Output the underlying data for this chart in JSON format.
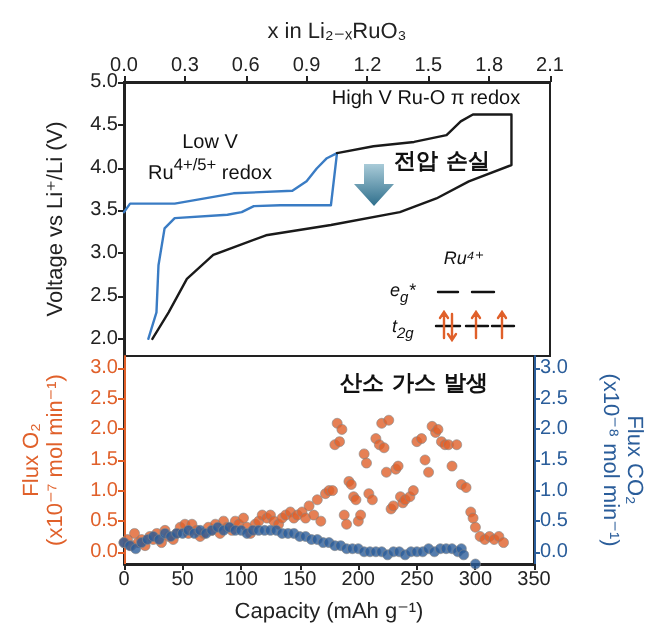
{
  "chart_data": [
    {
      "type": "line",
      "xlabel": "x in Li₂₋ₓRuO₃",
      "ylabel": "Voltage vs Li⁺/Li (V)",
      "xlim": [
        0,
        2.1
      ],
      "xticks": [
        {
          "value": 0,
          "label": "0.0"
        },
        {
          "value": 0.3,
          "label": "0.3"
        },
        {
          "value": 0.6,
          "label": "0.6"
        },
        {
          "value": 0.9,
          "label": "0.9"
        },
        {
          "value": 1.2,
          "label": "1.2"
        },
        {
          "value": 1.5,
          "label": "1.5"
        },
        {
          "value": 1.8,
          "label": "1.8"
        },
        {
          "value": 2.1,
          "label": "2.1"
        }
      ],
      "ylim": [
        1.8,
        5.0
      ],
      "yticks": [
        {
          "value": 2,
          "label": "2.0"
        },
        {
          "value": 2.5,
          "label": "2.5"
        },
        {
          "value": 3,
          "label": "3.0"
        },
        {
          "value": 3.5,
          "label": "3.5"
        },
        {
          "value": 4,
          "label": "4.0"
        },
        {
          "value": 4.5,
          "label": "4.5"
        },
        {
          "value": 5,
          "label": "5.0"
        }
      ],
      "marker": "none",
      "line_style": "solid",
      "grid": false,
      "series": [
        {
          "color": "#3a7cc4",
          "x": [
            0,
            0.03,
            0.25,
            0.54,
            0.83,
            0.9,
            0.95,
            1.0,
            1.05,
            1.02,
            0.77,
            0.64,
            0.58,
            0.51,
            0.25,
            0.2,
            0.17,
            0.16,
            0.12
          ],
          "values": [
            3.48,
            3.58,
            3.58,
            3.7,
            3.73,
            3.84,
            3.99,
            4.11,
            4.17,
            3.56,
            3.56,
            3.55,
            3.48,
            3.45,
            3.41,
            3.29,
            2.86,
            2.31,
            2.0
          ]
        },
        {
          "color": "#1a1a1a",
          "x": [
            1.05,
            1.23,
            1.43,
            1.59,
            1.66,
            1.72,
            1.91,
            1.91,
            1.7,
            1.54,
            1.36,
            1.02,
            0.7,
            0.44,
            0.31,
            0.22,
            0.14
          ],
          "values": [
            4.17,
            4.25,
            4.3,
            4.38,
            4.54,
            4.62,
            4.62,
            4.03,
            3.84,
            3.64,
            3.48,
            3.33,
            3.21,
            2.98,
            2.7,
            2.31,
            2.0
          ]
        }
      ],
      "annotations": [
        "High V Ru-O π redox",
        "Low V\nRu$^{4+/5+}$ redox",
        "전압 손실",
        "Ru⁴⁺",
        "e$_{g}$*",
        "t$_{2g}$"
      ]
    },
    {
      "type": "scatter",
      "xlabel": "Capacity (mAh g⁻¹)",
      "ylabel": "Flux O₂\n(x10⁻⁷ mol min⁻¹)",
      "y2label": "Flux CO₂\n(x10⁻⁸ mol min⁻¹)",
      "xlim": [
        0,
        350
      ],
      "xticks": [
        0,
        50,
        100,
        150,
        200,
        250,
        300,
        350
      ],
      "ylim": [
        -0.2,
        3.2
      ],
      "yticks": [
        {
          "value": 0,
          "label": "0.0"
        },
        {
          "value": 0.5,
          "label": "0.5"
        },
        {
          "value": 1,
          "label": "1.0"
        },
        {
          "value": 1.5,
          "label": "1.5"
        },
        {
          "value": 2,
          "label": "2.0"
        },
        {
          "value": 2.5,
          "label": "2.5"
        },
        {
          "value": 3,
          "label": "3.0"
        }
      ],
      "y2lim": [
        -0.2,
        3.2
      ],
      "y2ticks": [
        {
          "value": 0,
          "label": "0.0"
        },
        {
          "value": 0.5,
          "label": "0.5"
        },
        {
          "value": 1,
          "label": "1.0"
        },
        {
          "value": 1.5,
          "label": "1.5"
        },
        {
          "value": 2,
          "label": "2.0"
        },
        {
          "value": 2.5,
          "label": "2.5"
        },
        {
          "value": 3,
          "label": "3.0"
        }
      ],
      "marker": "circle",
      "grid": false,
      "series": [
        {
          "color": "#e0602a",
          "x": [
            0,
            3,
            6,
            9,
            12,
            15,
            18,
            22,
            25,
            28,
            32,
            35,
            38,
            42,
            45,
            48,
            52,
            55,
            58,
            62,
            65,
            68,
            72,
            75,
            78,
            82,
            85,
            88,
            92,
            95,
            98,
            102,
            105,
            108,
            112,
            115,
            118,
            122,
            125,
            128,
            132,
            135,
            138,
            142,
            145,
            148,
            152,
            155,
            158,
            162,
            165,
            168,
            172,
            175,
            178,
            180,
            182,
            184,
            186,
            188,
            190,
            192,
            194,
            196,
            198,
            200,
            202,
            205,
            207,
            209,
            212,
            215,
            218,
            220,
            222,
            224,
            226,
            228,
            230,
            232,
            234,
            236,
            238,
            240,
            244,
            247,
            250,
            254,
            257,
            260,
            263,
            266,
            268,
            271,
            274,
            277,
            280,
            284,
            288,
            292,
            296,
            298,
            300,
            304,
            308,
            312,
            316,
            320,
            324
          ],
          "values": [
            0.15,
            0.2,
            0.1,
            0.3,
            0.15,
            0.2,
            0.1,
            0.25,
            0.2,
            0.3,
            0.15,
            0.35,
            0.25,
            0.2,
            0.3,
            0.4,
            0.45,
            0.3,
            0.45,
            0.35,
            0.25,
            0.3,
            0.4,
            0.35,
            0.45,
            0.3,
            0.5,
            0.4,
            0.35,
            0.5,
            0.45,
            0.55,
            0.4,
            0.3,
            0.45,
            0.5,
            0.6,
            0.55,
            0.6,
            0.5,
            0.45,
            0.55,
            0.6,
            0.65,
            0.55,
            0.6,
            0.65,
            0.55,
            0.75,
            0.6,
            0.85,
            0.5,
            0.95,
            1.0,
            1.0,
            1.75,
            2.1,
            1.8,
            2.0,
            0.6,
            0.45,
            1.15,
            1.1,
            0.9,
            0.85,
            0.5,
            0.6,
            1.6,
            1.45,
            0.95,
            0.85,
            1.85,
            1.75,
            2.1,
            1.7,
            1.3,
            2.15,
            0.7,
            0.75,
            1.35,
            1.4,
            0.9,
            0.8,
            0.85,
            0.9,
            1.0,
            1.8,
            1.85,
            1.5,
            1.3,
            2.05,
            1.95,
            2.0,
            1.8,
            1.75,
            1.75,
            1.4,
            1.75,
            1.1,
            1.05,
            0.65,
            0.55,
            0.4,
            0.25,
            0.2,
            0.25,
            0.2,
            0.25,
            0.15
          ]
        },
        {
          "color": "#2a5d9a",
          "axis": "y2",
          "x": [
            0,
            5,
            10,
            15,
            20,
            25,
            30,
            35,
            40,
            45,
            50,
            55,
            60,
            65,
            70,
            75,
            80,
            85,
            90,
            95,
            100,
            105,
            110,
            115,
            120,
            125,
            130,
            135,
            140,
            145,
            150,
            155,
            160,
            165,
            170,
            175,
            180,
            185,
            190,
            195,
            200,
            205,
            210,
            215,
            220,
            225,
            230,
            235,
            240,
            245,
            250,
            255,
            260,
            265,
            270,
            275,
            280,
            285,
            288,
            290,
            300
          ],
          "values": [
            0.15,
            0.1,
            0.05,
            0.15,
            0.2,
            0.25,
            0.2,
            0.3,
            0.25,
            0.3,
            0.3,
            0.35,
            0.3,
            0.35,
            0.3,
            0.35,
            0.4,
            0.35,
            0.4,
            0.35,
            0.35,
            0.3,
            0.35,
            0.35,
            0.35,
            0.35,
            0.35,
            0.3,
            0.3,
            0.3,
            0.25,
            0.25,
            0.2,
            0.2,
            0.15,
            0.15,
            0.1,
            0.1,
            0.05,
            0.05,
            0.05,
            0,
            0,
            0,
            0,
            -0.05,
            0,
            0,
            -0.05,
            0,
            0,
            0,
            0.05,
            0,
            0.05,
            0.05,
            0.05,
            0,
            0.05,
            -0.05,
            -0.2
          ]
        }
      ],
      "annotations": [
        "산소 가스 발생"
      ]
    }
  ]
}
